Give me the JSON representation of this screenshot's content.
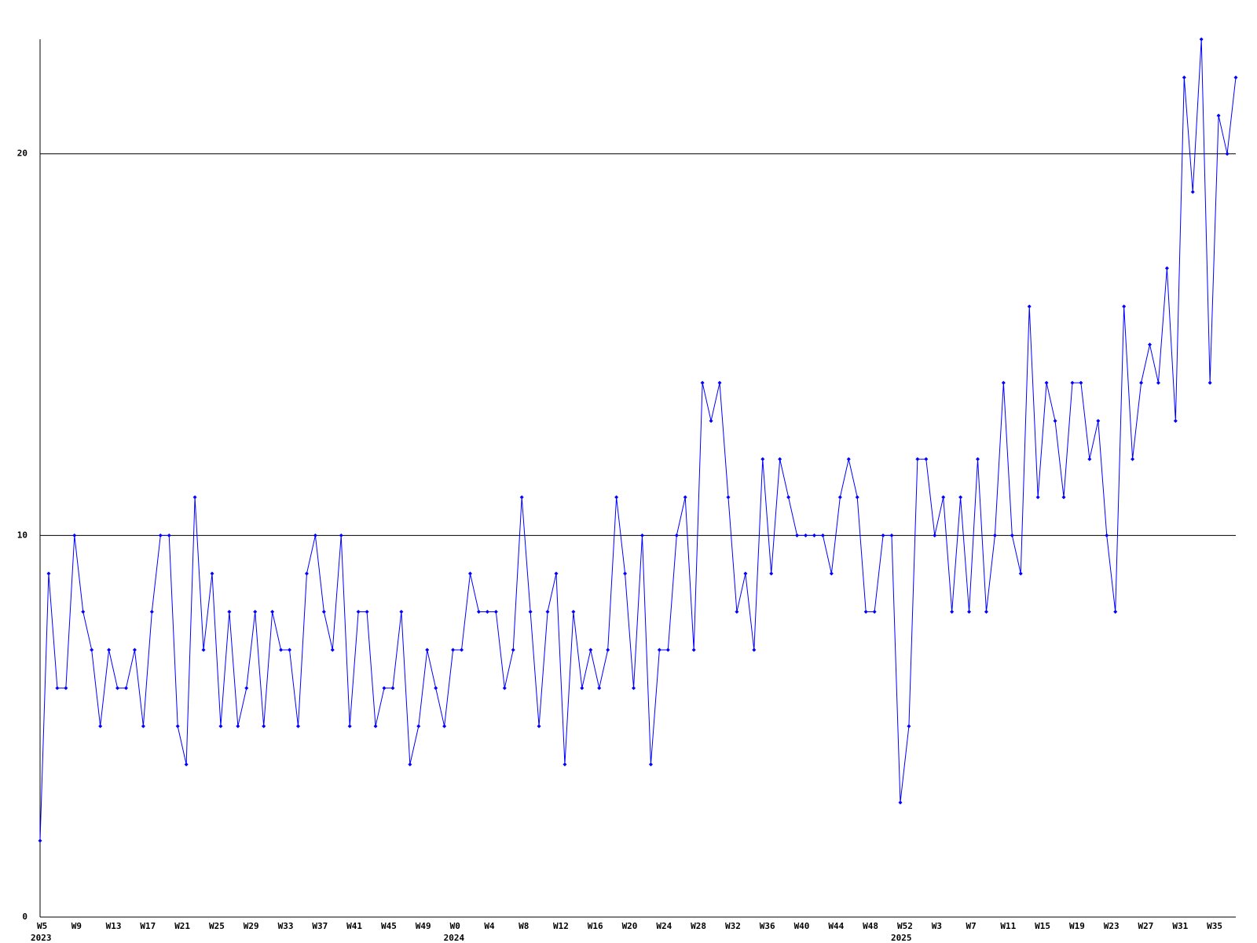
{
  "chart_data": {
    "type": "line",
    "categories": [
      "W5",
      null,
      null,
      null,
      "W9",
      null,
      null,
      null,
      "W13",
      null,
      null,
      null,
      "W17",
      null,
      null,
      null,
      "W21",
      null,
      null,
      null,
      "W25",
      null,
      null,
      null,
      "W29",
      null,
      null,
      null,
      "W33",
      null,
      null,
      null,
      "W37",
      null,
      null,
      null,
      "W41",
      null,
      null,
      null,
      "W45",
      null,
      null,
      null,
      "W49",
      null,
      null,
      null,
      "W0",
      null,
      null,
      null,
      "W4",
      null,
      null,
      null,
      "W8",
      null,
      null,
      null,
      "W12",
      null,
      null,
      null,
      "W16",
      null,
      null,
      null,
      "W20",
      null,
      null,
      null,
      "W24",
      null,
      null,
      null,
      "W28",
      null,
      null,
      null,
      "W32",
      null,
      null,
      null,
      "W36",
      null,
      null,
      null,
      "W40",
      null,
      null,
      null,
      "W44",
      null,
      null,
      null,
      "W48",
      null,
      null,
      null,
      "W52",
      null,
      null,
      null,
      "W3",
      null,
      null,
      null,
      "W7",
      null,
      null,
      null,
      "W11",
      null,
      null,
      null,
      "W15",
      null,
      null,
      null,
      "W19",
      null,
      null,
      null,
      "W23",
      null,
      null,
      null,
      "W27",
      null,
      null,
      null,
      "W31",
      null,
      null,
      null,
      "W35",
      null,
      null,
      null
    ],
    "category_years": [
      "2023",
      null,
      null,
      null,
      null,
      null,
      null,
      null,
      null,
      null,
      null,
      null,
      null,
      null,
      null,
      null,
      null,
      null,
      null,
      null,
      null,
      null,
      null,
      null,
      null,
      null,
      null,
      null,
      null,
      null,
      null,
      null,
      null,
      null,
      null,
      null,
      null,
      null,
      null,
      null,
      null,
      null,
      null,
      null,
      null,
      null,
      null,
      null,
      "2024",
      null,
      null,
      null,
      null,
      null,
      null,
      null,
      null,
      null,
      null,
      null,
      null,
      null,
      null,
      null,
      null,
      null,
      null,
      null,
      null,
      null,
      null,
      null,
      null,
      null,
      null,
      null,
      null,
      null,
      null,
      null,
      null,
      null,
      null,
      null,
      null,
      null,
      null,
      null,
      null,
      null,
      null,
      null,
      null,
      null,
      null,
      null,
      null,
      null,
      null,
      null,
      "2025",
      null,
      null,
      null,
      null,
      null,
      null,
      null,
      null,
      null,
      null,
      null,
      null,
      null,
      null,
      null,
      null,
      null,
      null,
      null,
      null,
      null,
      null,
      null,
      null,
      null,
      null,
      null,
      null,
      null,
      null,
      null,
      null,
      null,
      null,
      null,
      null,
      null,
      null,
      null
    ],
    "values": [
      2,
      9,
      6,
      6,
      10,
      8,
      7,
      5,
      7,
      6,
      6,
      7,
      5,
      8,
      10,
      10,
      5,
      4,
      11,
      7,
      9,
      5,
      8,
      5,
      6,
      8,
      5,
      8,
      7,
      7,
      5,
      9,
      10,
      8,
      7,
      10,
      5,
      8,
      8,
      5,
      6,
      6,
      8,
      4,
      5,
      7,
      6,
      5,
      7,
      7,
      9,
      8,
      8,
      8,
      6,
      7,
      11,
      8,
      5,
      8,
      9,
      4,
      8,
      6,
      7,
      6,
      7,
      11,
      9,
      6,
      10,
      4,
      7,
      7,
      10,
      11,
      7,
      14,
      13,
      14,
      11,
      8,
      9,
      7,
      12,
      9,
      12,
      11,
      10,
      10,
      10,
      10,
      9,
      11,
      12,
      11,
      8,
      8,
      10,
      10,
      3,
      5,
      12,
      12,
      10,
      11,
      8,
      11,
      8,
      12,
      8,
      10,
      14,
      10,
      9,
      16,
      11,
      14,
      13,
      11,
      14,
      14,
      12,
      13,
      10,
      8,
      16,
      12,
      14,
      15,
      14,
      17,
      13,
      22,
      19,
      23,
      14,
      21,
      20,
      22
    ],
    "color": "#0000ff",
    "line_color": "#000000",
    "ylim": [
      0,
      23
    ],
    "yticks": [
      0,
      10,
      20
    ],
    "grid": true
  }
}
